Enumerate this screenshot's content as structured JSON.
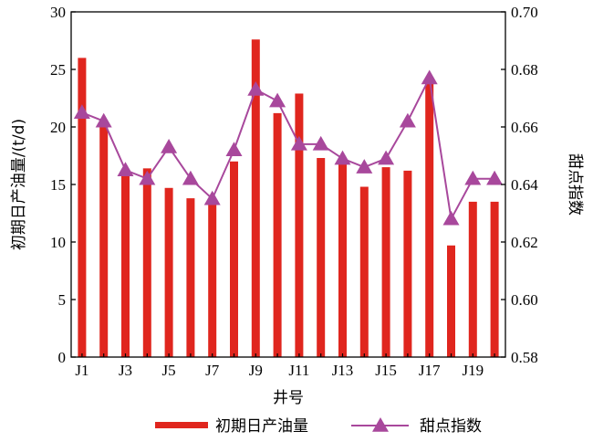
{
  "chart_data": {
    "type": "bar",
    "categories": [
      "J1",
      "J2",
      "J3",
      "J4",
      "J5",
      "J6",
      "J7",
      "J8",
      "J9",
      "J10",
      "J11",
      "J12",
      "J13",
      "J14",
      "J15",
      "J16",
      "J17",
      "J18",
      "J19",
      "J20"
    ],
    "x_tick_labels": [
      "J1",
      "J3",
      "J5",
      "J7",
      "J9",
      "J11",
      "J13",
      "J15",
      "J17",
      "J19"
    ],
    "xlabel": "井号",
    "ylabel_left": "初期日产油量/(t/d)",
    "ylabel_right": "甜点指数",
    "ylim_left": [
      0,
      30
    ],
    "ylim_right": [
      0.58,
      0.7
    ],
    "y_ticks_left": [
      "0",
      "5",
      "10",
      "15",
      "20",
      "25",
      "30"
    ],
    "y_ticks_right": [
      "0.58",
      "0.60",
      "0.62",
      "0.64",
      "0.66",
      "0.68",
      "0.70"
    ],
    "series": [
      {
        "name": "初期日产油量",
        "kind": "bar",
        "axis": "left",
        "color": "#e0261e",
        "values": [
          26.0,
          20.5,
          16.0,
          16.4,
          14.7,
          13.8,
          13.3,
          17.0,
          27.6,
          21.2,
          22.9,
          17.3,
          16.8,
          14.8,
          16.5,
          16.2,
          24.0,
          9.7,
          13.5,
          13.5
        ]
      },
      {
        "name": "甜点指数",
        "kind": "line",
        "axis": "right",
        "color": "#a8489c",
        "marker": "triangle",
        "values": [
          0.665,
          0.662,
          0.645,
          0.642,
          0.653,
          0.642,
          0.635,
          0.652,
          0.673,
          0.669,
          0.654,
          0.654,
          0.649,
          0.646,
          0.649,
          0.662,
          0.677,
          0.628,
          0.642,
          0.642
        ]
      }
    ],
    "legend_position": "bottom"
  }
}
